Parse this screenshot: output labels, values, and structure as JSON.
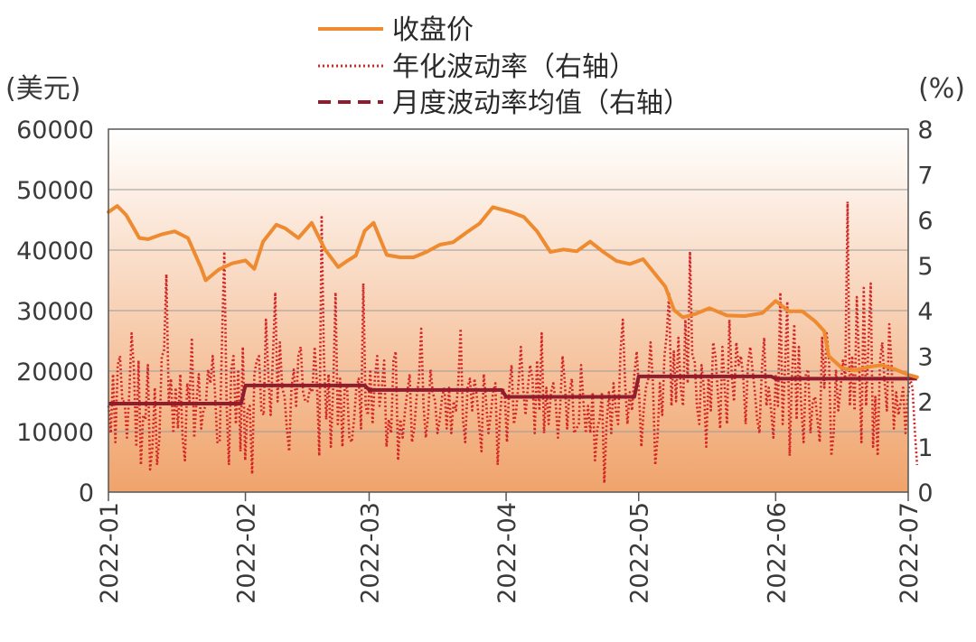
{
  "chart_data": {
    "type": "line",
    "title": "",
    "x_axis": {
      "label": "",
      "tick_labels": [
        "2022-01",
        "2022-02",
        "2022-03",
        "2022-04",
        "2022-05",
        "2022-06",
        "2022-07"
      ]
    },
    "y_left": {
      "unit_label": "(美元)",
      "range": [
        0,
        60000
      ],
      "ticks": [
        "0",
        "10000",
        "20000",
        "30000",
        "40000",
        "50000",
        "60000"
      ]
    },
    "y_right": {
      "unit_label": "(%)",
      "range": [
        0,
        8
      ],
      "ticks": [
        "0",
        "1",
        "2",
        "3",
        "4",
        "5",
        "6",
        "7",
        "8"
      ]
    },
    "legend": {
      "position": "top-center"
    },
    "colors": {
      "close": "#ee8a2f",
      "volatility": "#d42525",
      "monthly_mean": "#8f1d2d",
      "grid": "#9a9a9a",
      "bg_top": "#ffffff",
      "bg_bottom": "#f0a36b"
    },
    "series": [
      {
        "name": "收盘价",
        "axis": "left",
        "style": "solid",
        "points": [
          [
            "2022-01-01",
            46300
          ],
          [
            "2022-01-03",
            47300
          ],
          [
            "2022-01-05",
            45800
          ],
          [
            "2022-01-08",
            42000
          ],
          [
            "2022-01-10",
            41800
          ],
          [
            "2022-01-13",
            42600
          ],
          [
            "2022-01-16",
            43100
          ],
          [
            "2022-01-19",
            42000
          ],
          [
            "2022-01-22",
            37000
          ],
          [
            "2022-01-23",
            35000
          ],
          [
            "2022-01-26",
            36800
          ],
          [
            "2022-01-29",
            37800
          ],
          [
            "2022-02-01",
            38300
          ],
          [
            "2022-02-03",
            36900
          ],
          [
            "2022-02-05",
            41400
          ],
          [
            "2022-02-08",
            44200
          ],
          [
            "2022-02-10",
            43600
          ],
          [
            "2022-02-13",
            42000
          ],
          [
            "2022-02-16",
            44500
          ],
          [
            "2022-02-19",
            40100
          ],
          [
            "2022-02-22",
            37200
          ],
          [
            "2022-02-24",
            38200
          ],
          [
            "2022-02-26",
            39100
          ],
          [
            "2022-02-28",
            43200
          ],
          [
            "2022-03-02",
            44500
          ],
          [
            "2022-03-05",
            39200
          ],
          [
            "2022-03-08",
            38800
          ],
          [
            "2022-03-11",
            38800
          ],
          [
            "2022-03-14",
            39700
          ],
          [
            "2022-03-17",
            40900
          ],
          [
            "2022-03-20",
            41300
          ],
          [
            "2022-03-23",
            42900
          ],
          [
            "2022-03-26",
            44400
          ],
          [
            "2022-03-29",
            47100
          ],
          [
            "2022-04-02",
            46300
          ],
          [
            "2022-04-05",
            45500
          ],
          [
            "2022-04-08",
            43100
          ],
          [
            "2022-04-11",
            39700
          ],
          [
            "2022-04-14",
            40100
          ],
          [
            "2022-04-17",
            39800
          ],
          [
            "2022-04-20",
            41400
          ],
          [
            "2022-04-23",
            39700
          ],
          [
            "2022-04-26",
            38200
          ],
          [
            "2022-04-29",
            37700
          ],
          [
            "2022-05-02",
            38500
          ],
          [
            "2022-05-05",
            35800
          ],
          [
            "2022-05-07",
            34000
          ],
          [
            "2022-05-09",
            30100
          ],
          [
            "2022-05-11",
            28900
          ],
          [
            "2022-05-14",
            29500
          ],
          [
            "2022-05-17",
            30400
          ],
          [
            "2022-05-21",
            29200
          ],
          [
            "2022-05-25",
            29100
          ],
          [
            "2022-05-29",
            29600
          ],
          [
            "2022-06-01",
            31600
          ],
          [
            "2022-06-04",
            29900
          ],
          [
            "2022-06-07",
            29900
          ],
          [
            "2022-06-10",
            28200
          ],
          [
            "2022-06-12",
            26600
          ],
          [
            "2022-06-13",
            22500
          ],
          [
            "2022-06-16",
            20500
          ],
          [
            "2022-06-19",
            20100
          ],
          [
            "2022-06-22",
            20700
          ],
          [
            "2022-06-25",
            21000
          ],
          [
            "2022-06-28",
            20300
          ],
          [
            "2022-07-01",
            19400
          ],
          [
            "2022-07-03",
            19000
          ]
        ]
      },
      {
        "name": "年化波动率（右轴）",
        "axis": "right",
        "style": "dotted",
        "values": [
          1.9,
          1.3,
          2.6,
          1.1,
          2.8,
          3.0,
          2.0,
          2.0,
          1.2,
          2.2,
          3.5,
          2.7,
          1.0,
          2.9,
          0.6,
          1.7,
          1.6,
          2.8,
          0.5,
          1.0,
          2.3,
          0.6,
          1.2,
          3.0,
          3.1,
          4.8,
          2.0,
          2.5,
          1.3,
          2.3,
          1.4,
          2.6,
          1.2,
          0.7,
          2.4,
          2.0,
          3.4,
          1.2,
          2.0,
          2.6,
          1.4,
          1.8,
          1.9,
          2.7,
          2.4,
          3.0,
          2.2,
          1.1,
          1.1,
          3.3,
          5.3,
          1.9,
          0.6,
          2.7,
          3.0,
          1.5,
          2.7,
          0.9,
          3.2,
          0.7,
          1.8,
          1.9,
          0.4,
          2.6,
          2.9,
          3.0,
          1.8,
          1.7,
          3.8,
          2.6,
          1.7,
          3.0,
          4.4,
          2.0,
          3.3,
          2.3,
          2.1,
          1.4,
          0.9,
          2.3,
          2.7,
          1.9,
          3.0,
          3.2,
          2.2,
          2.0,
          2.0,
          2.3,
          2.2,
          3.2,
          2.4,
          0.8,
          6.1,
          3.0,
          1.6,
          2.6,
          1.0,
          2.3,
          4.4,
          1.5,
          2.5,
          1.0,
          2.3,
          2.3,
          1.2,
          1.1,
          1.6,
          2.3,
          2.5,
          1.4,
          4.6,
          1.9,
          1.7,
          2.7,
          1.5,
          2.5,
          3.0,
          1.9,
          2.3,
          2.9,
          1.0,
          1.6,
          1.3,
          2.9,
          3.1,
          0.7,
          1.6,
          1.2,
          1.8,
          2.2,
          2.6,
          1.1,
          1.4,
          2.1,
          2.5,
          3.6,
          1.9,
          1.2,
          1.7,
          2.7,
          2.2,
          2.0,
          1.3,
          1.6,
          2.1,
          2.3,
          1.4,
          2.3,
          1.3,
          2.0,
          1.8,
          2.4,
          3.6,
          1.6,
          1.1,
          2.3,
          2.5,
          1.8,
          2.5,
          2.1,
          1.5,
          0.9,
          2.6,
          2.0,
          1.3,
          1.7,
          2.2,
          2.4,
          0.6,
          1.7,
          2.3,
          2.2,
          1.1,
          2.3,
          2.8,
          1.5,
          1.8,
          2.4,
          3.2,
          2.3,
          1.7,
          2.3,
          2.8,
          2.5,
          1.3,
          2.9,
          1.8,
          3.5,
          1.3,
          2.3,
          1.5,
          2.2,
          2.4,
          2.0,
          1.2,
          1.9,
          3.0,
          2.4,
          1.4,
          2.2,
          2.5,
          1.3,
          1.4,
          1.5,
          2.8,
          2.0,
          1.3,
          1.9,
          1.3,
          2.2,
          0.7,
          1.4,
          1.6,
          2.2,
          0.2,
          1.5,
          2.2,
          1.3,
          2.4,
          1.8,
          1.5,
          3.1,
          3.8,
          2.4,
          1.5,
          2.2,
          1.8,
          2.6,
          3.1,
          2.2,
          1.0,
          1.8,
          2.3,
          2.5,
          3.3,
          2.4,
          0.6,
          1.2,
          2.4,
          1.7,
          3.0,
          3.5,
          4.4,
          1.9,
          3.1,
          2.0,
          3.4,
          2.3,
          1.9,
          3.8,
          2.4,
          5.3,
          3.0,
          2.9,
          1.9,
          1.5,
          2.8,
          2.3,
          1.0,
          2.6,
          1.8,
          3.3,
          3.0,
          2.2,
          1.4,
          3.2,
          2.3,
          1.5,
          3.8,
          2.6,
          2.0,
          3.3,
          2.8,
          3.0,
          2.5,
          1.5,
          2.8,
          3.2,
          2.7,
          2.2,
          1.6,
          1.3,
          2.7,
          3.4,
          1.9,
          2.3,
          1.8,
          1.2,
          2.6,
          1.9,
          4.4,
          1.5,
          2.7,
          4.2,
          0.8,
          2.5,
          3.7,
          1.6,
          3.2,
          1.9,
          1.1,
          2.6,
          2.7,
          1.3,
          2.0,
          2.1,
          1.6,
          1.1,
          3.4,
          2.3,
          3.5,
          2.9,
          0.8,
          1.3,
          2.7,
          1.8,
          2.3,
          2.9,
          2.5,
          6.4,
          1.9,
          3.0,
          1.8,
          4.3,
          2.8,
          1.1,
          4.5,
          1.9,
          3.2,
          4.6,
          1.0,
          2.1,
          0.8,
          2.9,
          3.3,
          2.4,
          1.8,
          3.7,
          2.8,
          1.4,
          2.2,
          1.7,
          2.0,
          2.3,
          1.3,
          2.1,
          2.5,
          2.3,
          1.4,
          0.6
        ]
      },
      {
        "name": "月度波动率均值（右轴）",
        "axis": "right",
        "style": "dashed",
        "segments": [
          {
            "from": "2022-01-01",
            "to": "2022-01-31",
            "value": 1.95
          },
          {
            "from": "2022-02-01",
            "to": "2022-02-28",
            "value": 2.35
          },
          {
            "from": "2022-03-01",
            "to": "2022-03-31",
            "value": 2.25
          },
          {
            "from": "2022-04-01",
            "to": "2022-04-30",
            "value": 2.1
          },
          {
            "from": "2022-05-01",
            "to": "2022-05-31",
            "value": 2.55
          },
          {
            "from": "2022-06-01",
            "to": "2022-07-03",
            "value": 2.5
          }
        ]
      }
    ]
  }
}
